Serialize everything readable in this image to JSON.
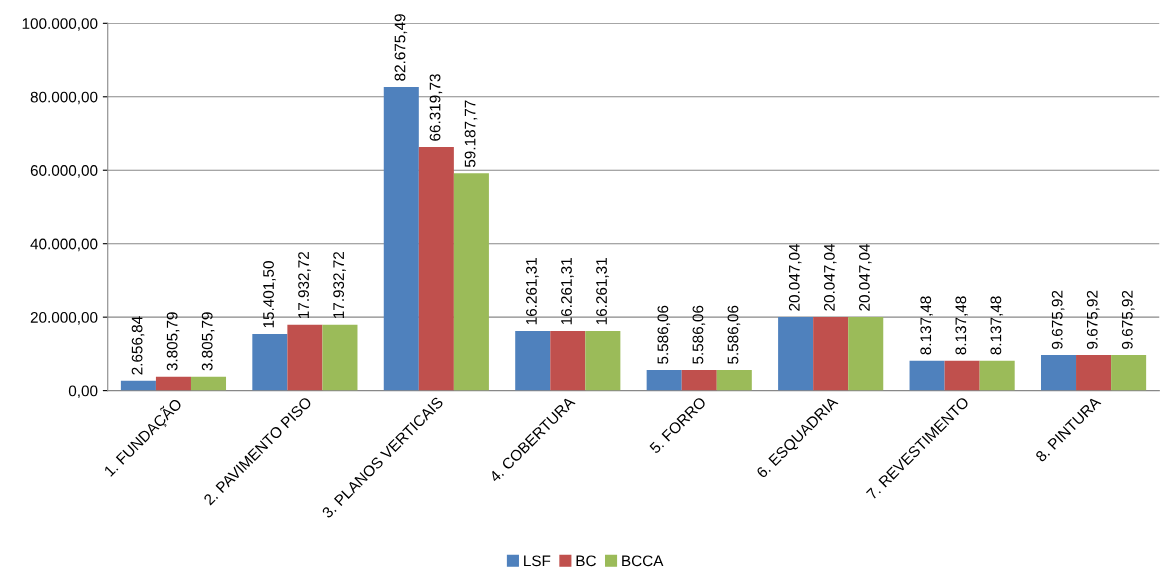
{
  "chart_data": {
    "type": "bar",
    "categories": [
      "1. FUNDAÇÃO",
      "2. PAVIMENTO PISO",
      "3. PLANOS VERTICAIS",
      "4. COBERTURA",
      "5. FORRO",
      "6. ESQUADRIA",
      "7. REVESTIMENTO",
      "8. PINTURA"
    ],
    "series": [
      {
        "name": "LSF",
        "color": "#4f81bd",
        "values": [
          2656.84,
          15401.5,
          82675.49,
          16261.31,
          5586.06,
          20047.04,
          8137.48,
          9675.92
        ],
        "value_labels": [
          "2.656,84",
          "15.401,50",
          "82.675,49",
          "16.261,31",
          "5.586,06",
          "20.047,04",
          "8.137,48",
          "9.675,92"
        ]
      },
      {
        "name": "BC",
        "color": "#c0504d",
        "values": [
          3805.79,
          17932.72,
          66319.73,
          16261.31,
          5586.06,
          20047.04,
          8137.48,
          9675.92
        ],
        "value_labels": [
          "3.805,79",
          "17.932,72",
          "66.319,73",
          "16.261,31",
          "5.586,06",
          "20.047,04",
          "8.137,48",
          "9.675,92"
        ]
      },
      {
        "name": "BCCA",
        "color": "#9bbb59",
        "values": [
          3805.79,
          17932.72,
          59187.77,
          16261.31,
          5586.06,
          20047.04,
          8137.48,
          9675.92
        ],
        "value_labels": [
          "3.805,79",
          "17.932,72",
          "59.187,77",
          "16.261,31",
          "5.586,06",
          "20.047,04",
          "8.137,48",
          "9.675,92"
        ]
      }
    ],
    "ylim": [
      0,
      100000
    ],
    "yticks": [
      {
        "value": 0,
        "label": "0,00"
      },
      {
        "value": 20000,
        "label": "20.000,00"
      },
      {
        "value": 40000,
        "label": "40.000,00"
      },
      {
        "value": 60000,
        "label": "60.000,00"
      },
      {
        "value": 80000,
        "label": "80.000,00"
      },
      {
        "value": 100000,
        "label": "100.000,00"
      }
    ],
    "grid": "y",
    "legend": "bottom"
  }
}
